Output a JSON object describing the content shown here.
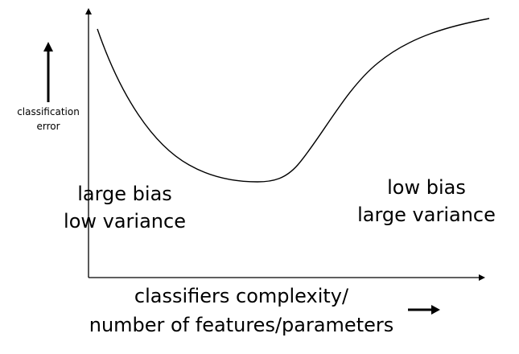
{
  "y_label": {
    "line1": "classification",
    "line2": "error"
  },
  "left_region": {
    "line1": "large bias",
    "line2": "low variance"
  },
  "right_region": {
    "line1": "low bias",
    "line2": "large variance"
  },
  "x_label": {
    "line1": "classifiers complexity/",
    "line2": "number of features/parameters"
  },
  "colors": {
    "ink": "#000000",
    "background": "#ffffff"
  },
  "icons": [
    "up-arrow-icon",
    "right-arrow-icon"
  ]
}
